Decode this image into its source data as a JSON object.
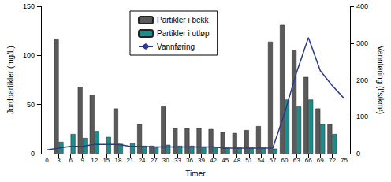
{
  "chart_data": {
    "type": "bar",
    "x_label": "Timer",
    "y_label": "Jordpartikler (mg/L)",
    "y2_label": "Vannføring (l/s/km²)",
    "categories": [
      "0",
      "3",
      "6",
      "9",
      "12",
      "15",
      "18",
      "21",
      "24",
      "27",
      "30",
      "33",
      "36",
      "39",
      "42",
      "45",
      "48",
      "51",
      "54",
      "57",
      "60",
      "63",
      "66",
      "69",
      "72",
      "75"
    ],
    "ylim": [
      0,
      150
    ],
    "yticks": [
      0,
      50,
      100,
      150
    ],
    "y2lim": [
      0,
      400
    ],
    "y2ticks": [
      0,
      100,
      200,
      300,
      400
    ],
    "legend": "top",
    "grid": false,
    "series": [
      {
        "name": "Partikler i bekk",
        "type": "bar",
        "color": "#5a5a5a",
        "values": [
          null,
          117,
          null,
          68,
          60,
          null,
          46,
          null,
          30,
          8,
          48,
          26,
          26,
          26,
          25,
          22,
          21,
          24,
          28,
          114,
          131,
          105,
          78,
          46,
          30,
          null
        ]
      },
      {
        "name": "Partikler i utløp",
        "type": "bar",
        "color": "#1f8c8c",
        "values": [
          null,
          12,
          20,
          16,
          23,
          17,
          10,
          11,
          8,
          7,
          9,
          8,
          8,
          7,
          7,
          6,
          6,
          6,
          6,
          5,
          55,
          48,
          55,
          30,
          20,
          null
        ]
      },
      {
        "name": "Vannføring",
        "type": "line",
        "axis": "y2",
        "color": "#2b3a8c",
        "values": [
          10,
          15,
          20,
          20,
          25,
          25,
          25,
          20,
          20,
          18,
          18,
          18,
          18,
          18,
          18,
          15,
          15,
          15,
          15,
          15,
          110,
          220,
          315,
          225,
          185,
          150
        ]
      }
    ]
  }
}
